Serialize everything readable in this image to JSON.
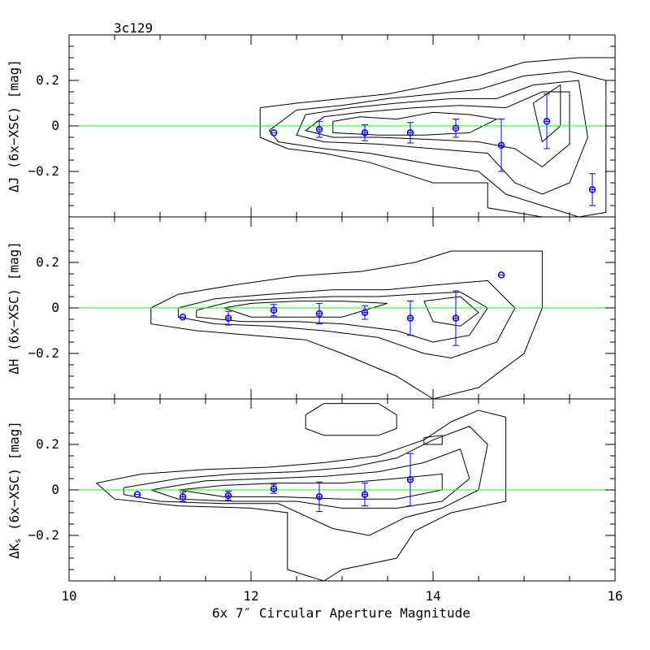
{
  "chart_data": {
    "type": "scatter",
    "title": "3c129",
    "xlabel": "6x 7″ Circular Aperture Magnitude",
    "xlim": [
      10,
      16
    ],
    "x_ticks": [
      10,
      12,
      14,
      16
    ],
    "ylim": [
      -0.4,
      0.4
    ],
    "y_ticks": [
      0.2,
      0,
      -0.2
    ],
    "y_tick_labels": [
      "0.2",
      "0",
      "−0.2"
    ],
    "reference_line": {
      "y": 0,
      "color": "#00ff00"
    },
    "marker_color": "#0000ff",
    "contour_color": "#000000",
    "panels": [
      {
        "ylabel_main": "ΔJ (6x−XSC) [mag]",
        "ylabel_prefix": "",
        "ylabel_sub": "",
        "ylabel_suffix": "",
        "points": [
          {
            "x": 12.25,
            "y": -0.03,
            "err": 0.0
          },
          {
            "x": 12.75,
            "y": -0.015,
            "err": 0.035
          },
          {
            "x": 13.25,
            "y": -0.03,
            "err": 0.035
          },
          {
            "x": 13.75,
            "y": -0.03,
            "err": 0.045
          },
          {
            "x": 14.25,
            "y": -0.01,
            "err": 0.04
          },
          {
            "x": 14.75,
            "y": -0.085,
            "err": 0.115
          },
          {
            "x": 15.25,
            "y": 0.02,
            "err": 0.12
          },
          {
            "x": 15.75,
            "y": -0.28,
            "err": 0.07
          }
        ],
        "contours": [
          [
            [
              12.1,
              0.08
            ],
            [
              12.5,
              0.1
            ],
            [
              13.0,
              0.12
            ],
            [
              13.5,
              0.14
            ],
            [
              14.0,
              0.18
            ],
            [
              14.5,
              0.22
            ],
            [
              15.0,
              0.28
            ],
            [
              15.6,
              0.3
            ],
            [
              16.0,
              0.3
            ],
            [
              16.0,
              -0.4
            ],
            [
              15.2,
              -0.4
            ],
            [
              14.6,
              -0.36
            ],
            [
              14.6,
              -0.25
            ],
            [
              14.0,
              -0.25
            ],
            [
              13.3,
              -0.16
            ],
            [
              12.8,
              -0.12
            ],
            [
              12.4,
              -0.1
            ],
            [
              12.1,
              -0.05
            ],
            [
              12.1,
              0.08
            ]
          ],
          [
            [
              12.5,
              0.07
            ],
            [
              13.0,
              0.09
            ],
            [
              13.5,
              0.12
            ],
            [
              14.0,
              0.14
            ],
            [
              14.5,
              0.16
            ],
            [
              15.0,
              0.22
            ],
            [
              15.5,
              0.24
            ],
            [
              15.9,
              0.2
            ],
            [
              15.9,
              -0.38
            ],
            [
              15.6,
              -0.4
            ],
            [
              15.2,
              -0.35
            ],
            [
              14.8,
              -0.3
            ],
            [
              14.5,
              -0.2
            ],
            [
              14.0,
              -0.17
            ],
            [
              13.3,
              -0.12
            ],
            [
              12.8,
              -0.1
            ],
            [
              12.3,
              -0.07
            ],
            [
              12.2,
              -0.02
            ],
            [
              12.5,
              0.07
            ]
          ],
          [
            [
              12.6,
              0.05
            ],
            [
              13.1,
              0.08
            ],
            [
              13.6,
              0.1
            ],
            [
              14.2,
              0.12
            ],
            [
              14.7,
              0.12
            ],
            [
              15.1,
              0.18
            ],
            [
              15.6,
              0.2
            ],
            [
              15.7,
              -0.05
            ],
            [
              15.5,
              -0.25
            ],
            [
              15.2,
              -0.3
            ],
            [
              14.9,
              -0.25
            ],
            [
              14.6,
              -0.12
            ],
            [
              14.0,
              -0.1
            ],
            [
              13.4,
              -0.08
            ],
            [
              12.8,
              -0.07
            ],
            [
              12.5,
              -0.04
            ],
            [
              12.6,
              0.05
            ]
          ],
          [
            [
              12.8,
              0.04
            ],
            [
              13.2,
              0.06
            ],
            [
              13.8,
              0.08
            ],
            [
              14.3,
              0.09
            ],
            [
              14.8,
              0.08
            ],
            [
              15.2,
              0.15
            ],
            [
              15.5,
              0.15
            ],
            [
              15.5,
              -0.08
            ],
            [
              15.2,
              -0.18
            ],
            [
              14.9,
              -0.1
            ],
            [
              14.5,
              -0.07
            ],
            [
              14.0,
              -0.06
            ],
            [
              13.4,
              -0.05
            ],
            [
              12.9,
              -0.05
            ],
            [
              12.6,
              -0.02
            ],
            [
              12.8,
              0.04
            ]
          ],
          [
            [
              12.9,
              0.02
            ],
            [
              13.2,
              0.04
            ],
            [
              13.6,
              0.03
            ],
            [
              14.0,
              0.06
            ],
            [
              14.4,
              0.05
            ],
            [
              14.7,
              0.03
            ],
            [
              14.4,
              -0.03
            ],
            [
              13.9,
              -0.04
            ],
            [
              13.4,
              -0.04
            ],
            [
              12.9,
              -0.03
            ],
            [
              12.9,
              0.02
            ]
          ],
          [
            [
              15.1,
              0.1
            ],
            [
              15.4,
              0.18
            ],
            [
              15.4,
              0.0
            ],
            [
              15.2,
              -0.07
            ],
            [
              15.1,
              0.1
            ]
          ]
        ]
      },
      {
        "ylabel_main": "ΔH (6x−XSC) [mag]",
        "ylabel_prefix": "",
        "ylabel_sub": "",
        "ylabel_suffix": "",
        "points": [
          {
            "x": 11.25,
            "y": -0.04,
            "err": 0.0
          },
          {
            "x": 11.75,
            "y": -0.045,
            "err": 0.03
          },
          {
            "x": 12.25,
            "y": -0.01,
            "err": 0.025
          },
          {
            "x": 12.75,
            "y": -0.025,
            "err": 0.045
          },
          {
            "x": 13.25,
            "y": -0.02,
            "err": 0.03
          },
          {
            "x": 13.75,
            "y": -0.045,
            "err": 0.075
          },
          {
            "x": 14.25,
            "y": -0.045,
            "err": 0.12
          },
          {
            "x": 14.75,
            "y": 0.145,
            "err": 0.0
          }
        ],
        "contours": [
          [
            [
              10.9,
              0.0
            ],
            [
              11.2,
              0.06
            ],
            [
              11.8,
              0.1
            ],
            [
              12.5,
              0.14
            ],
            [
              13.2,
              0.16
            ],
            [
              13.8,
              0.2
            ],
            [
              14.2,
              0.25
            ],
            [
              15.2,
              0.25
            ],
            [
              15.2,
              0.0
            ],
            [
              15.0,
              -0.2
            ],
            [
              14.5,
              -0.35
            ],
            [
              14.0,
              -0.4
            ],
            [
              13.6,
              -0.3
            ],
            [
              13.0,
              -0.2
            ],
            [
              12.6,
              -0.14
            ],
            [
              12.0,
              -0.12
            ],
            [
              11.4,
              -0.1
            ],
            [
              10.9,
              -0.07
            ],
            [
              10.9,
              0.0
            ]
          ],
          [
            [
              11.2,
              0.0
            ],
            [
              11.6,
              0.04
            ],
            [
              12.2,
              0.06
            ],
            [
              12.9,
              0.08
            ],
            [
              13.5,
              0.08
            ],
            [
              14.0,
              0.1
            ],
            [
              14.6,
              0.12
            ],
            [
              14.9,
              0.0
            ],
            [
              14.7,
              -0.15
            ],
            [
              14.2,
              -0.22
            ],
            [
              13.9,
              -0.2
            ],
            [
              13.4,
              -0.13
            ],
            [
              12.8,
              -0.1
            ],
            [
              12.2,
              -0.08
            ],
            [
              11.6,
              -0.07
            ],
            [
              11.2,
              -0.04
            ],
            [
              11.2,
              0.0
            ]
          ],
          [
            [
              11.4,
              -0.01
            ],
            [
              11.8,
              0.03
            ],
            [
              12.3,
              0.04
            ],
            [
              12.9,
              0.05
            ],
            [
              13.4,
              0.05
            ],
            [
              13.8,
              0.06
            ],
            [
              14.3,
              0.07
            ],
            [
              14.6,
              0.0
            ],
            [
              14.4,
              -0.12
            ],
            [
              14.0,
              -0.15
            ],
            [
              13.6,
              -0.1
            ],
            [
              13.0,
              -0.07
            ],
            [
              12.5,
              -0.06
            ],
            [
              11.9,
              -0.06
            ],
            [
              11.4,
              -0.04
            ],
            [
              11.4,
              -0.01
            ]
          ],
          [
            [
              11.7,
              0.0
            ],
            [
              12.0,
              0.02
            ],
            [
              12.5,
              0.03
            ],
            [
              13.0,
              0.03
            ],
            [
              13.5,
              0.02
            ],
            [
              13.0,
              -0.04
            ],
            [
              12.5,
              -0.04
            ],
            [
              12.0,
              -0.04
            ],
            [
              11.7,
              0.0
            ]
          ],
          [
            [
              13.9,
              0.03
            ],
            [
              14.3,
              0.05
            ],
            [
              14.5,
              -0.02
            ],
            [
              14.3,
              -0.08
            ],
            [
              14.0,
              -0.06
            ],
            [
              13.9,
              0.03
            ]
          ]
        ]
      },
      {
        "ylabel_main": "",
        "ylabel_prefix": "ΔK",
        "ylabel_sub": "s",
        "ylabel_suffix": " (6x−XSC) [mag]",
        "points": [
          {
            "x": 10.75,
            "y": -0.02,
            "err": 0.0
          },
          {
            "x": 11.25,
            "y": -0.03,
            "err": 0.02
          },
          {
            "x": 11.75,
            "y": -0.025,
            "err": 0.02
          },
          {
            "x": 12.25,
            "y": 0.005,
            "err": 0.02
          },
          {
            "x": 12.75,
            "y": -0.03,
            "err": 0.065
          },
          {
            "x": 13.25,
            "y": -0.02,
            "err": 0.05
          },
          {
            "x": 13.75,
            "y": 0.045,
            "err": 0.115
          }
        ],
        "contours": [
          [
            [
              12.8,
              0.38
            ],
            [
              13.4,
              0.38
            ],
            [
              13.6,
              0.33
            ],
            [
              13.6,
              0.27
            ],
            [
              13.4,
              0.24
            ],
            [
              12.8,
              0.24
            ],
            [
              12.6,
              0.27
            ],
            [
              12.6,
              0.33
            ],
            [
              12.8,
              0.38
            ]
          ],
          [
            [
              10.3,
              0.03
            ],
            [
              10.8,
              0.07
            ],
            [
              11.5,
              0.09
            ],
            [
              12.2,
              0.1
            ],
            [
              12.8,
              0.12
            ],
            [
              13.4,
              0.15
            ],
            [
              13.9,
              0.22
            ],
            [
              14.2,
              0.3
            ],
            [
              14.5,
              0.35
            ],
            [
              14.8,
              0.32
            ],
            [
              14.8,
              -0.05
            ],
            [
              14.2,
              -0.1
            ],
            [
              13.8,
              -0.18
            ],
            [
              13.6,
              -0.3
            ],
            [
              13.0,
              -0.35
            ],
            [
              12.8,
              -0.4
            ],
            [
              12.4,
              -0.35
            ],
            [
              12.4,
              -0.1
            ],
            [
              12.0,
              -0.08
            ],
            [
              11.2,
              -0.07
            ],
            [
              10.5,
              -0.04
            ],
            [
              10.3,
              0.03
            ]
          ],
          [
            [
              10.6,
              0.01
            ],
            [
              11.2,
              0.05
            ],
            [
              11.8,
              0.07
            ],
            [
              12.5,
              0.08
            ],
            [
              13.1,
              0.1
            ],
            [
              13.6,
              0.14
            ],
            [
              14.0,
              0.22
            ],
            [
              14.4,
              0.28
            ],
            [
              14.6,
              0.2
            ],
            [
              14.5,
              0.0
            ],
            [
              14.1,
              -0.08
            ],
            [
              13.7,
              -0.12
            ],
            [
              13.3,
              -0.2
            ],
            [
              12.9,
              -0.17
            ],
            [
              12.3,
              -0.06
            ],
            [
              11.7,
              -0.06
            ],
            [
              11.0,
              -0.05
            ],
            [
              10.6,
              -0.02
            ],
            [
              10.6,
              0.01
            ]
          ],
          [
            [
              10.9,
              0.0
            ],
            [
              11.5,
              0.04
            ],
            [
              12.2,
              0.05
            ],
            [
              12.8,
              0.06
            ],
            [
              13.4,
              0.08
            ],
            [
              13.9,
              0.12
            ],
            [
              14.3,
              0.18
            ],
            [
              14.4,
              0.05
            ],
            [
              14.1,
              -0.05
            ],
            [
              13.6,
              -0.08
            ],
            [
              13.0,
              -0.08
            ],
            [
              12.5,
              -0.05
            ],
            [
              11.8,
              -0.05
            ],
            [
              11.2,
              -0.04
            ],
            [
              10.9,
              0.0
            ]
          ],
          [
            [
              11.2,
              0.0
            ],
            [
              11.7,
              0.02
            ],
            [
              12.3,
              0.03
            ],
            [
              13.0,
              0.03
            ],
            [
              13.6,
              0.05
            ],
            [
              14.1,
              0.07
            ],
            [
              14.1,
              0.0
            ],
            [
              13.6,
              -0.04
            ],
            [
              13.0,
              -0.04
            ],
            [
              12.3,
              -0.03
            ],
            [
              11.7,
              -0.03
            ],
            [
              11.2,
              0.0
            ]
          ],
          [
            [
              13.9,
              0.23
            ],
            [
              14.1,
              0.24
            ],
            [
              14.1,
              0.2
            ],
            [
              13.9,
              0.2
            ],
            [
              13.9,
              0.23
            ]
          ]
        ]
      }
    ]
  }
}
